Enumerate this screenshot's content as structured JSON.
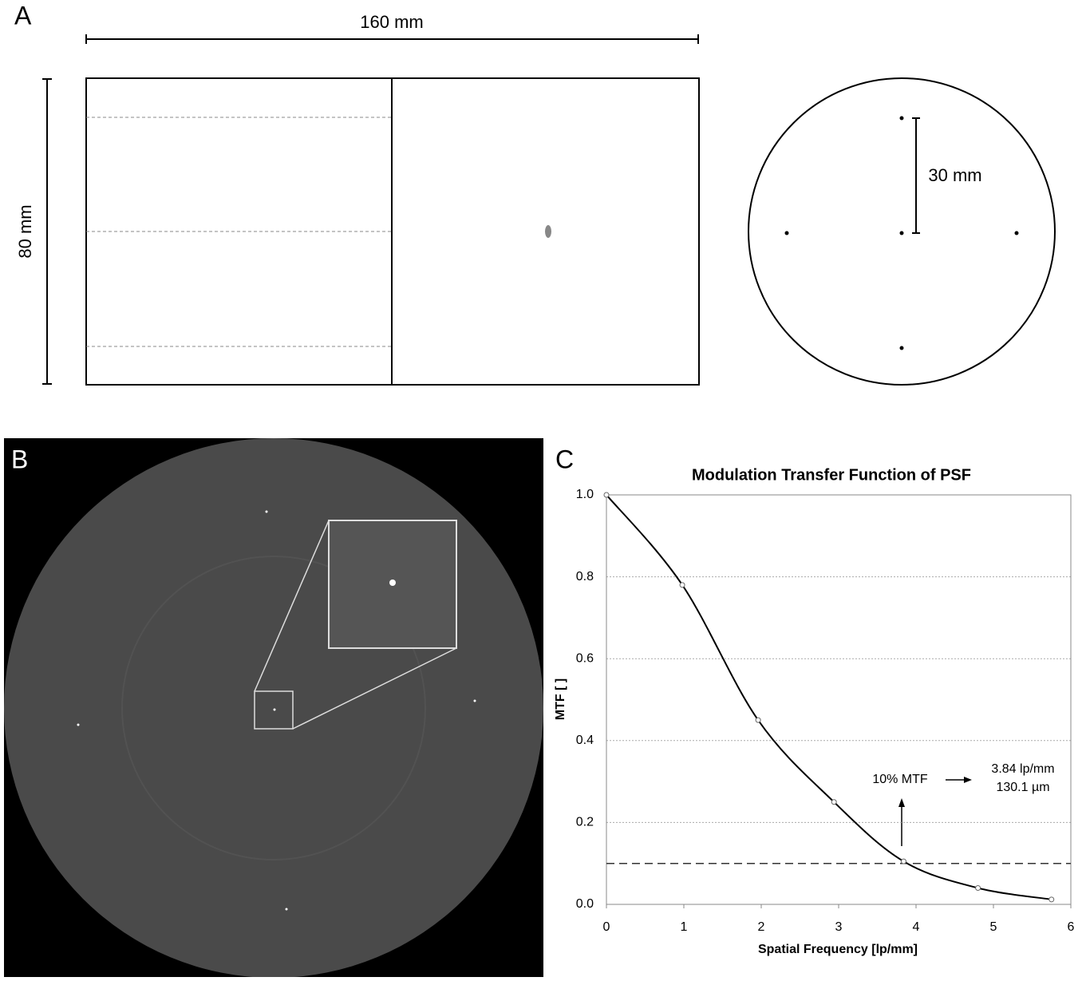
{
  "panels": {
    "a": "A",
    "b": "B",
    "c": "C"
  },
  "diagram": {
    "width_label": "160 mm",
    "height_label": "80 mm",
    "spacing_label": "30 mm"
  },
  "chart_data": {
    "type": "line",
    "title": "Modulation Transfer Function of PSF",
    "x_label": "Spatial Frequency [lp/mm]",
    "y_label": "MTF [ ]",
    "x": [
      0,
      0.98,
      1.96,
      2.94,
      3.84,
      4.8,
      5.75
    ],
    "values": [
      1.0,
      0.78,
      0.45,
      0.25,
      0.105,
      0.04,
      0.012
    ],
    "color": "#000000",
    "xlim": [
      0,
      6
    ],
    "ylim": [
      0,
      1
    ],
    "xticks": [
      0,
      1,
      2,
      3,
      4,
      5,
      6
    ],
    "yticks": [
      {
        "value": 0,
        "label": "0.0"
      },
      0.2,
      0.4,
      0.6,
      0.8,
      {
        "value": 1,
        "label": "1.0"
      }
    ],
    "grid": true,
    "threshold": 0.1,
    "annotations": {
      "threshold_label": "10% MTF",
      "frequency": "3.84 lp/mm",
      "resolution": "130.1 µm"
    }
  }
}
